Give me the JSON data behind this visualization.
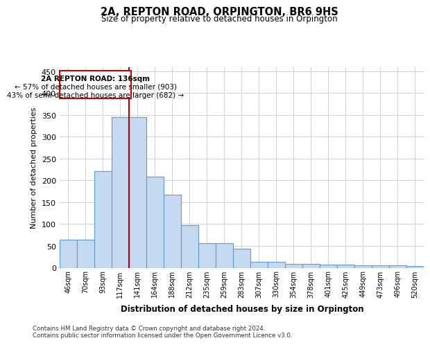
{
  "title": "2A, REPTON ROAD, ORPINGTON, BR6 9HS",
  "subtitle": "Size of property relative to detached houses in Orpington",
  "xlabel": "Distribution of detached houses by size in Orpington",
  "ylabel": "Number of detached properties",
  "categories": [
    "46sqm",
    "70sqm",
    "93sqm",
    "117sqm",
    "141sqm",
    "164sqm",
    "188sqm",
    "212sqm",
    "235sqm",
    "259sqm",
    "283sqm",
    "307sqm",
    "330sqm",
    "354sqm",
    "378sqm",
    "401sqm",
    "425sqm",
    "449sqm",
    "473sqm",
    "496sqm",
    "520sqm"
  ],
  "bar_heights": [
    65,
    65,
    222,
    345,
    345,
    209,
    168,
    98,
    57,
    57,
    43,
    14,
    14,
    8,
    8,
    7,
    7,
    5,
    5,
    5,
    4
  ],
  "bar_color": "#c5d9f0",
  "bar_edge_color": "#5b9bd5",
  "background_color": "#ffffff",
  "grid_color": "#c8c8d0",
  "annotation_text_line1": "2A REPTON ROAD: 136sqm",
  "annotation_text_line2": "← 57% of detached houses are smaller (903)",
  "annotation_text_line3": "43% of semi-detached houses are larger (682) →",
  "red_line_color": "#aa0000",
  "footer_line1": "Contains HM Land Registry data © Crown copyright and database right 2024.",
  "footer_line2": "Contains public sector information licensed under the Open Government Licence v3.0.",
  "ylim": [
    0,
    460
  ],
  "yticks": [
    0,
    50,
    100,
    150,
    200,
    250,
    300,
    350,
    400,
    450
  ]
}
